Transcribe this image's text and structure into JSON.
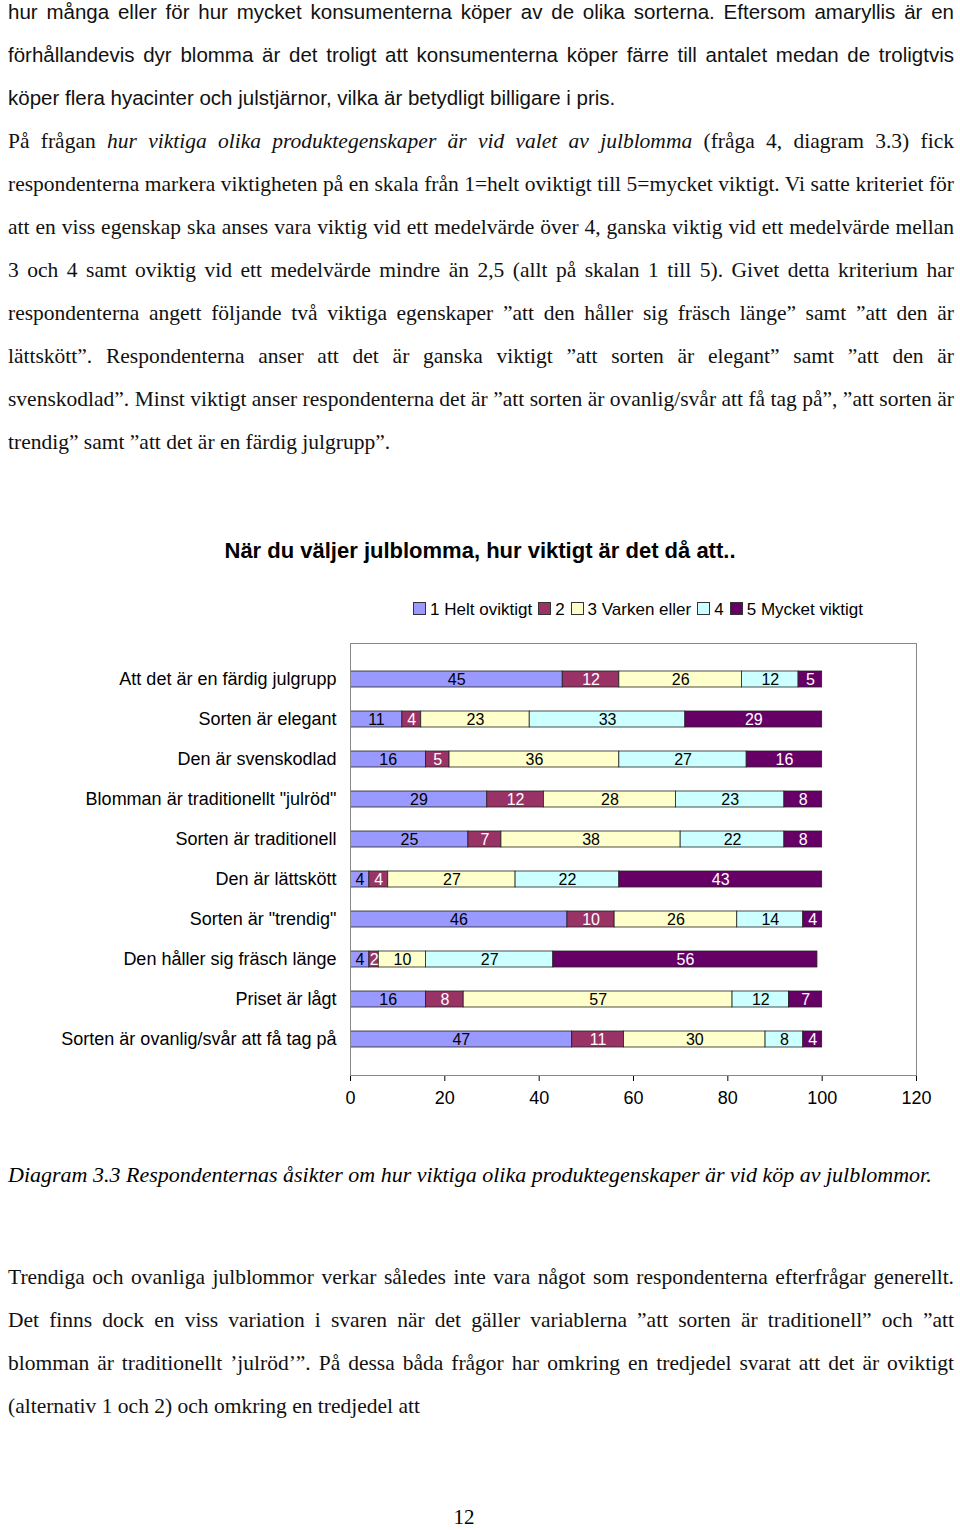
{
  "paragraphs_before": [
    [
      {
        "text": "hur många eller för hur mycket konsumenterna köper av de olika sorterna. Eftersom amaryllis är en förhållandevis dyr blomma är det troligt att konsumenterna köper färre till antalet medan de troligtvis köper flera hyacinter och julstjärnor, vilka är betydligt billigare i pris."
      }
    ],
    [
      {
        "text": "På frågan "
      },
      {
        "text": "hur viktiga olika produktegenskaper är vid valet av julblomma",
        "italic": true
      },
      {
        "text": " (fråga 4, diagram 3.3) fick respondenterna markera viktigheten på en skala från 1=helt oviktigt till 5=mycket viktigt. Vi satte kriteriet för att en viss egenskap ska anses vara viktig vid ett medelvärde över 4, ganska viktig vid ett medelvärde mellan 3 och 4 samt oviktig vid ett medelvärde mindre än 2,5 (allt på skalan 1 till 5). Givet detta kriterium har respondenterna angett följande två viktiga egenskaper ”att den håller sig fräsch länge” samt ”att den är lättskött”. Respondenterna anser att det är ganska viktigt ”att sorten är elegant” samt ”att den är svenskodlad”. Minst viktigt anser respondenterna det är ”att sorten är ovanlig/svår att få tag på”, ”att sorten är trendig” samt ”att det är en färdig julgrupp”."
      }
    ]
  ],
  "chart_data": {
    "type": "bar",
    "orientation": "horizontal",
    "stacked": true,
    "data_labels": true,
    "title": "När du väljer julblomma, hur viktigt är det då att..",
    "categories": [
      "Att det är en färdig julgrupp",
      "Sorten är elegant",
      "Den är svenskodlad",
      "Blomman är traditionellt \"julröd\"",
      "Sorten är traditionell",
      "Den är lättskött",
      "Sorten är \"trendig\"",
      "Den håller sig fräsch länge",
      "Priset är lågt",
      "Sorten är ovanlig/svår att få tag på"
    ],
    "series": [
      {
        "name": "1 Helt oviktigt",
        "color": "#9999ff",
        "values": [
          45,
          11,
          16,
          29,
          25,
          4,
          46,
          4,
          16,
          47
        ]
      },
      {
        "name": "2",
        "color": "#993366",
        "values": [
          12,
          4,
          5,
          12,
          7,
          4,
          10,
          2,
          8,
          11
        ]
      },
      {
        "name": "3 Varken eller",
        "color": "#ffffcc",
        "values": [
          26,
          23,
          36,
          28,
          38,
          27,
          26,
          10,
          57,
          30
        ]
      },
      {
        "name": "4",
        "color": "#ccffff",
        "values": [
          12,
          33,
          27,
          23,
          22,
          22,
          14,
          27,
          12,
          8
        ]
      },
      {
        "name": "5 Mycket viktigt",
        "color": "#660066",
        "values": [
          5,
          29,
          16,
          8,
          8,
          43,
          4,
          56,
          7,
          4
        ]
      }
    ],
    "xlim": [
      0,
      120
    ],
    "xticks": [
      0,
      20,
      40,
      60,
      80,
      100,
      120
    ],
    "legend": "top"
  },
  "caption": "Diagram 3.3 Respondenternas åsikter om hur viktiga olika produktegenskaper är vid köp av julblommor.",
  "paragraphs_after": [
    [
      {
        "text": "Trendiga och ovanliga julblommor verkar således inte vara något som respondenterna efterfrågar generellt. Det finns dock en viss variation i svaren när det gäller variablerna ”att sorten är traditionell” och ”att blomman är traditionellt ’julröd’”. På dessa båda frågor har omkring en tredjedel svarat att det är oviktigt (alternativ 1 och 2) och omkring en tredjedel att"
      }
    ]
  ],
  "page_number": "12"
}
